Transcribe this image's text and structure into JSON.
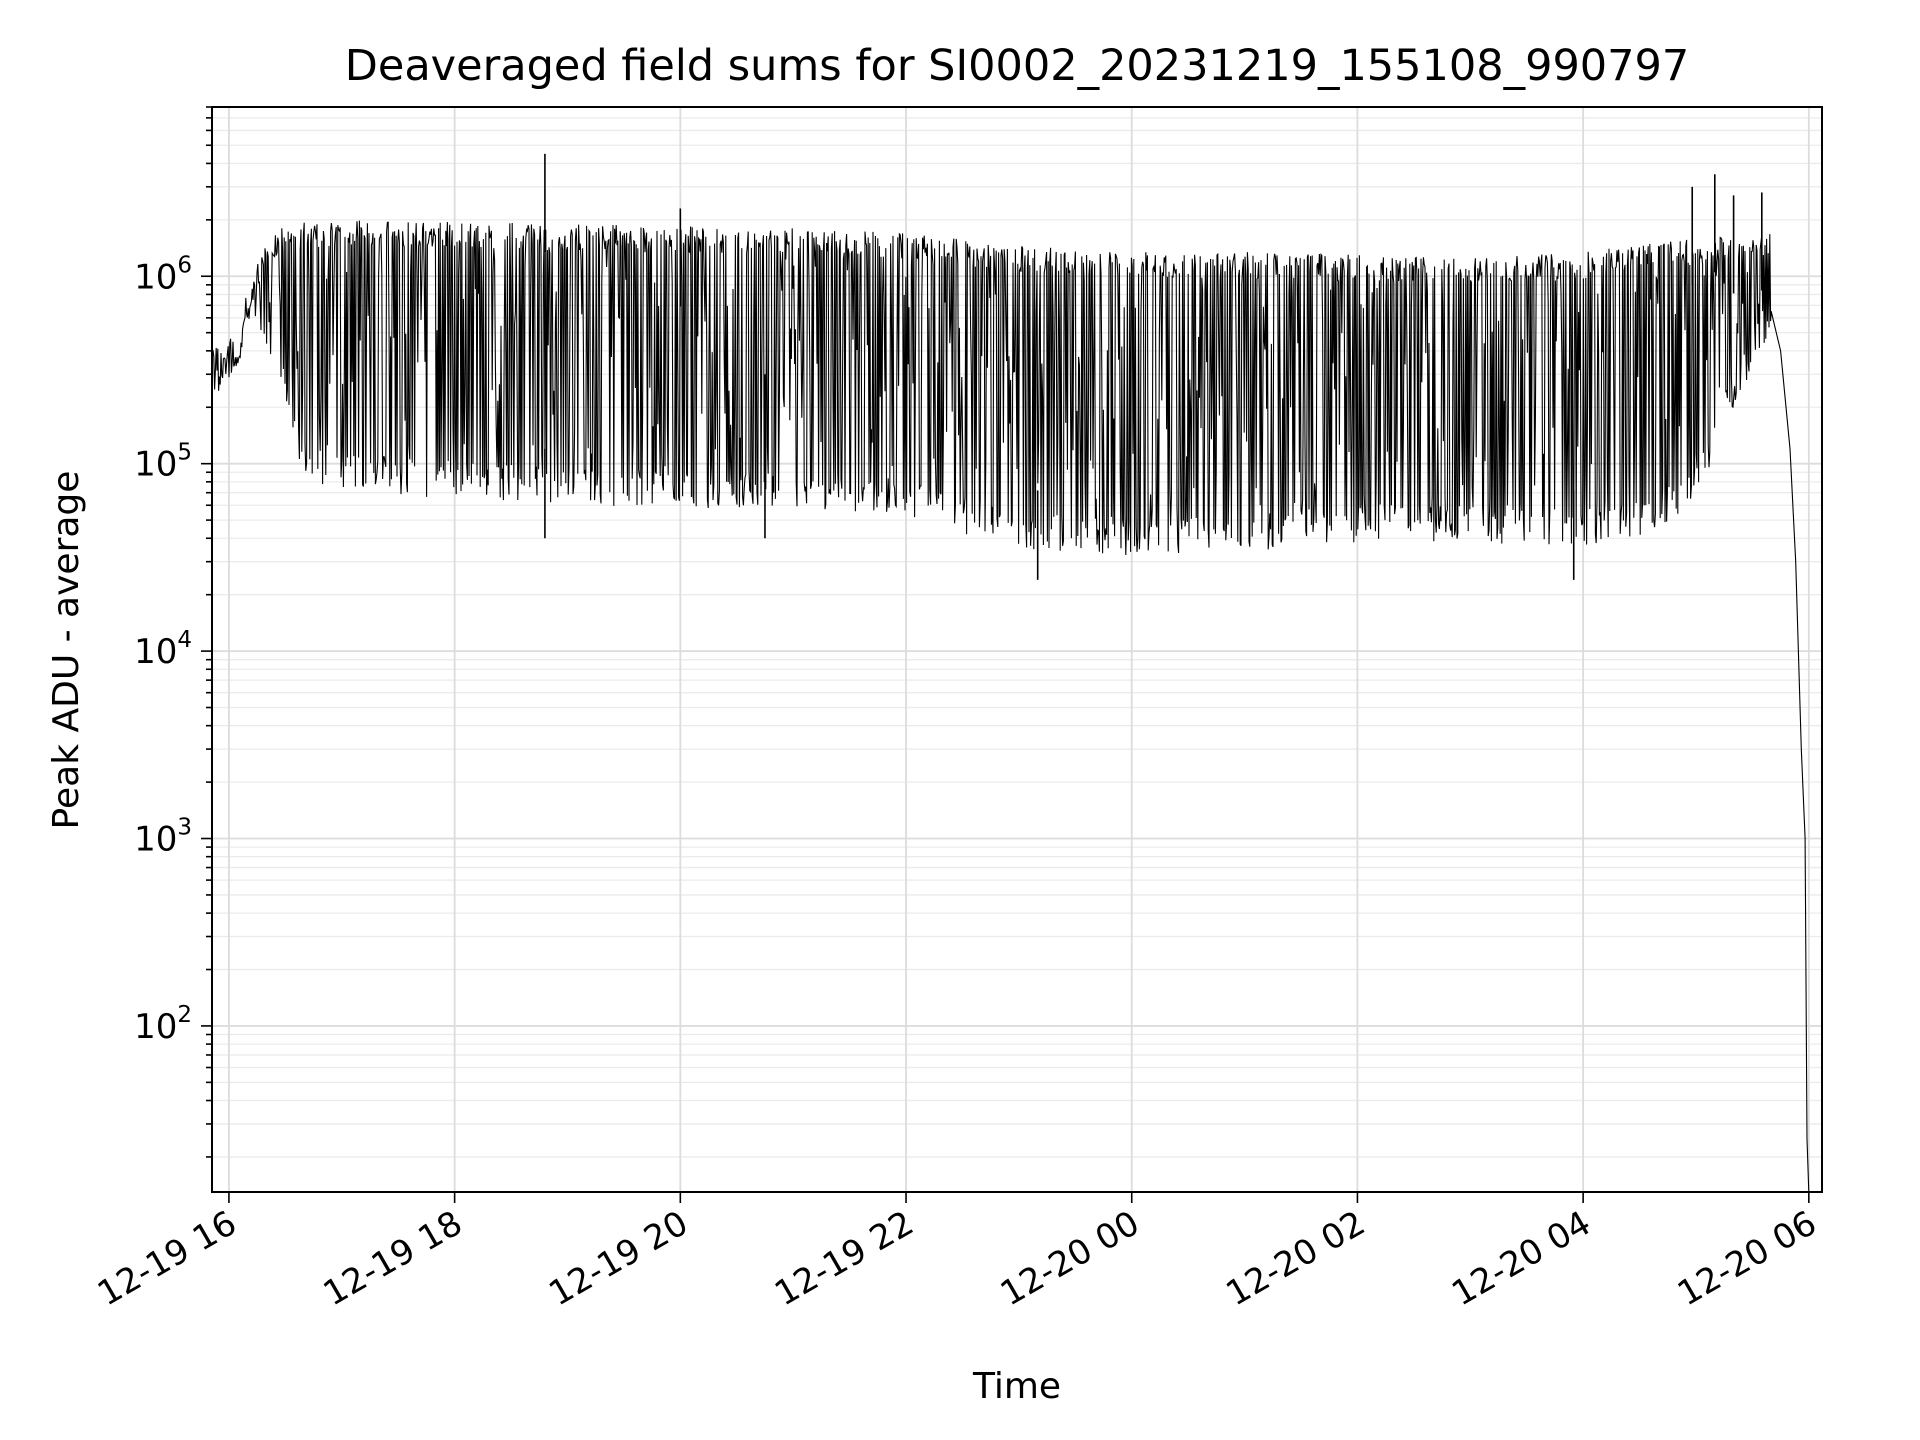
{
  "chart_data": {
    "type": "line",
    "title": "Deaveraged field sums for SI0002_20231219_155108_990797",
    "xlabel": "Time",
    "ylabel": "Peak ADU - average",
    "yscale": "log",
    "ylim": [
      13,
      8000000
    ],
    "xlim": [
      "2023-12-19 15:51",
      "2023-12-20 06:07"
    ],
    "grid": true,
    "line_color": "#000000",
    "x_ticks": [
      {
        "value": "2023-12-19 16:00",
        "label": "12-19 16"
      },
      {
        "value": "2023-12-19 18:00",
        "label": "12-19 18"
      },
      {
        "value": "2023-12-19 20:00",
        "label": "12-19 20"
      },
      {
        "value": "2023-12-19 22:00",
        "label": "12-19 22"
      },
      {
        "value": "2023-12-20 00:00",
        "label": "12-20 00"
      },
      {
        "value": "2023-12-20 02:00",
        "label": "12-20 02"
      },
      {
        "value": "2023-12-20 04:00",
        "label": "12-20 04"
      },
      {
        "value": "2023-12-20 06:00",
        "label": "12-20 06"
      }
    ],
    "y_ticks": [
      {
        "value": 100,
        "base": "10",
        "exp": "2"
      },
      {
        "value": 1000,
        "base": "10",
        "exp": "3"
      },
      {
        "value": 10000,
        "base": "10",
        "exp": "4"
      },
      {
        "value": 100000,
        "base": "10",
        "exp": "5"
      },
      {
        "value": 1000000,
        "base": "10",
        "exp": "6"
      }
    ],
    "series": [
      {
        "upper_envelope": {
          "x": [
            "2023-12-19 15:51",
            "2023-12-19 16:00",
            "2023-12-19 16:05",
            "2023-12-19 16:10",
            "2023-12-19 16:15",
            "2023-12-19 16:30",
            "2023-12-19 17:00",
            "2023-12-19 18:00",
            "2023-12-19 19:00",
            "2023-12-19 20:00",
            "2023-12-19 21:00",
            "2023-12-19 22:00",
            "2023-12-19 23:00",
            "2023-12-20 00:00",
            "2023-12-20 01:00",
            "2023-12-20 02:00",
            "2023-12-20 03:00",
            "2023-12-20 04:00",
            "2023-12-20 05:00",
            "2023-12-20 05:40"
          ],
          "y": [
            300000,
            400000,
            420000,
            800000,
            1300000,
            1900000,
            2000000,
            1950000,
            1900000,
            1850000,
            1800000,
            1700000,
            1450000,
            1350000,
            1350000,
            1300000,
            1250000,
            1350000,
            1600000,
            1700000
          ]
        },
        "lower_envelope": {
          "x": [
            "2023-12-19 15:51",
            "2023-12-19 16:00",
            "2023-12-19 16:05",
            "2023-12-19 16:10",
            "2023-12-19 16:20",
            "2023-12-19 16:30",
            "2023-12-19 16:40",
            "2023-12-19 17:00",
            "2023-12-19 18:00",
            "2023-12-19 19:00",
            "2023-12-19 20:00",
            "2023-12-19 21:00",
            "2023-12-19 22:00",
            "2023-12-19 23:00",
            "2023-12-20 00:00",
            "2023-12-20 01:00",
            "2023-12-20 02:00",
            "2023-12-20 03:00",
            "2023-12-20 04:00",
            "2023-12-20 04:30",
            "2023-12-20 05:00",
            "2023-12-20 05:20",
            "2023-12-20 05:40"
          ],
          "y": [
            250000,
            300000,
            300000,
            600000,
            400000,
            200000,
            80000,
            70000,
            65000,
            60000,
            58000,
            55000,
            50000,
            35000,
            32000,
            33000,
            38000,
            38000,
            35000,
            40000,
            60000,
            200000,
            500000
          ]
        },
        "spikes": [
          {
            "x": "2023-12-19 18:48",
            "y": 4500000
          },
          {
            "x": "2023-12-19 20:00",
            "y": 2300000
          },
          {
            "x": "2023-12-20 04:58",
            "y": 3000000
          },
          {
            "x": "2023-12-20 05:10",
            "y": 3500000
          },
          {
            "x": "2023-12-20 05:20",
            "y": 2700000
          },
          {
            "x": "2023-12-20 05:35",
            "y": 2800000
          }
        ],
        "dips": [
          {
            "x": "2023-12-19 18:48",
            "y": 40000
          },
          {
            "x": "2023-12-19 20:45",
            "y": 40000
          },
          {
            "x": "2023-12-19 23:10",
            "y": 24000
          },
          {
            "x": "2023-12-20 03:55",
            "y": 24000
          }
        ],
        "tail": {
          "x": [
            "2023-12-20 05:40",
            "2023-12-20 05:45",
            "2023-12-20 05:50",
            "2023-12-20 05:53",
            "2023-12-20 05:56",
            "2023-12-20 05:58",
            "2023-12-20 05:59",
            "2023-12-20 06:00"
          ],
          "y": [
            650000,
            400000,
            120000,
            30000,
            3000,
            1000,
            25,
            13
          ]
        }
      }
    ]
  }
}
